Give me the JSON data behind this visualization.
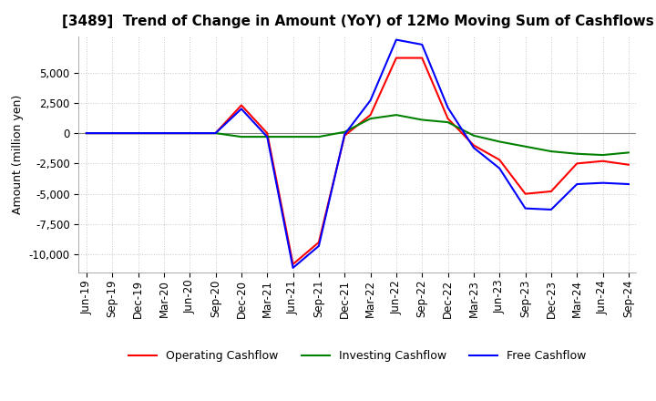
{
  "title": "[3489]  Trend of Change in Amount (YoY) of 12Mo Moving Sum of Cashflows",
  "ylabel": "Amount (million yen)",
  "x_labels": [
    "Jun-19",
    "Sep-19",
    "Dec-19",
    "Mar-20",
    "Jun-20",
    "Sep-20",
    "Dec-20",
    "Mar-21",
    "Jun-21",
    "Sep-21",
    "Dec-21",
    "Mar-22",
    "Jun-22",
    "Sep-22",
    "Dec-22",
    "Mar-23",
    "Jun-23",
    "Sep-23",
    "Dec-23",
    "Mar-24",
    "Jun-24",
    "Sep-24"
  ],
  "operating_cashflow": [
    0,
    0,
    0,
    0,
    0,
    0,
    2300,
    0,
    -10800,
    -9000,
    -200,
    1500,
    6200,
    6200,
    1200,
    -1000,
    -2200,
    -5000,
    -4800,
    -2500,
    -2300,
    -2600
  ],
  "investing_cashflow": [
    0,
    0,
    0,
    0,
    0,
    0,
    -300,
    -300,
    -300,
    -300,
    100,
    1200,
    1500,
    1100,
    900,
    -200,
    -700,
    -1100,
    -1500,
    -1700,
    -1800,
    -1600
  ],
  "free_cashflow": [
    0,
    0,
    0,
    0,
    0,
    0,
    2000,
    -300,
    -11100,
    -9300,
    -100,
    2700,
    7700,
    7300,
    2100,
    -1200,
    -2900,
    -6200,
    -6300,
    -4200,
    -4100,
    -4200
  ],
  "ylim": [
    -11500,
    8000
  ],
  "yticks": [
    5000,
    2500,
    0,
    -2500,
    -5000,
    -7500,
    -10000
  ],
  "operating_color": "#ff0000",
  "investing_color": "#008000",
  "free_color": "#0000ff",
  "background_color": "#ffffff",
  "grid_color": "#c8c8c8",
  "title_fontsize": 11,
  "axis_fontsize": 9,
  "tick_fontsize": 8.5,
  "legend_fontsize": 9
}
